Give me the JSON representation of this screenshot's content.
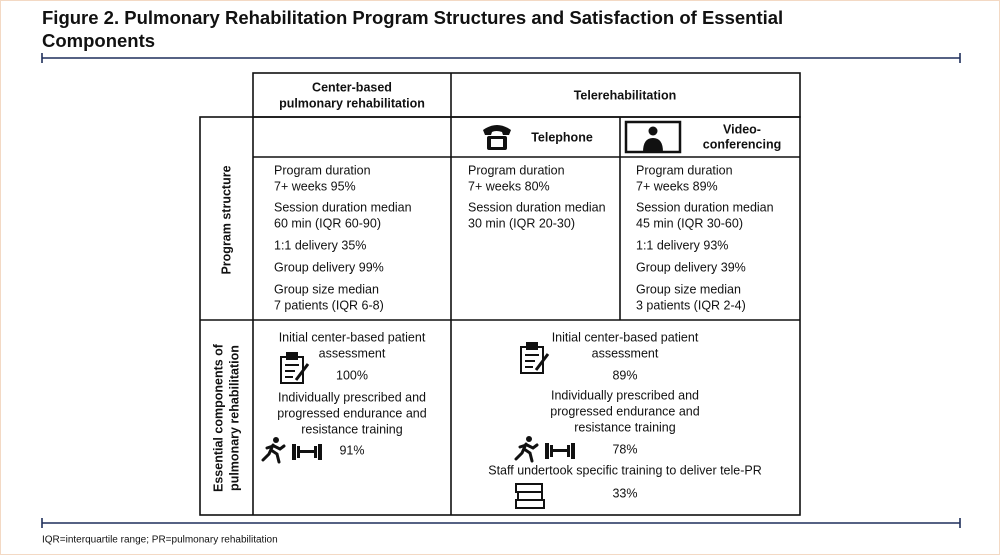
{
  "title": [
    "Figure 2. Pulmonary Rehabilitation Program Structures and Satisfaction of Essential",
    "Components"
  ],
  "table": {
    "headers": {
      "center_based": [
        "Center-based",
        "pulmonary rehabilitation"
      ],
      "telerehabilitation": "Telerehabilitation",
      "telephone": "Telephone",
      "video": [
        "Video-",
        "conferencing"
      ]
    },
    "rows": [
      {
        "label": [
          "Program structure"
        ],
        "center": [
          "Program duration",
          "7+ weeks 95%",
          "Session duration median",
          "60 min (IQR 60-90)",
          "1:1 delivery 35%",
          "Group delivery 99%",
          "Group size median",
          "7 patients (IQR 6-8)"
        ],
        "telephone": [
          "Program duration",
          "7+ weeks 80%",
          "Session duration median",
          "30 min (IQR 20-30)"
        ],
        "video": [
          "Program duration",
          "7+ weeks 89%",
          "Session duration median",
          "45 min (IQR 30-60)",
          "1:1 delivery 93%",
          "Group delivery 39%",
          "Group size median",
          "3 patients (IQR 2-4)"
        ]
      },
      {
        "label": [
          "Essential components of",
          "pulmonary rehabilitation"
        ],
        "center": [
          "Initial center-based patient",
          "assessment",
          "100%",
          "Individually prescribed and",
          "progressed endurance and",
          "resistance training",
          "91%"
        ],
        "tele": [
          "Initial center-based patient",
          "assessment",
          "89%",
          "Individually prescribed and",
          "progressed endurance and",
          "resistance training",
          "78%",
          "Staff undertook specific training to deliver tele-PR",
          "33%"
        ]
      }
    ]
  },
  "footnote": "IQR=interquartile range; PR=pulmonary rehabilitation"
}
